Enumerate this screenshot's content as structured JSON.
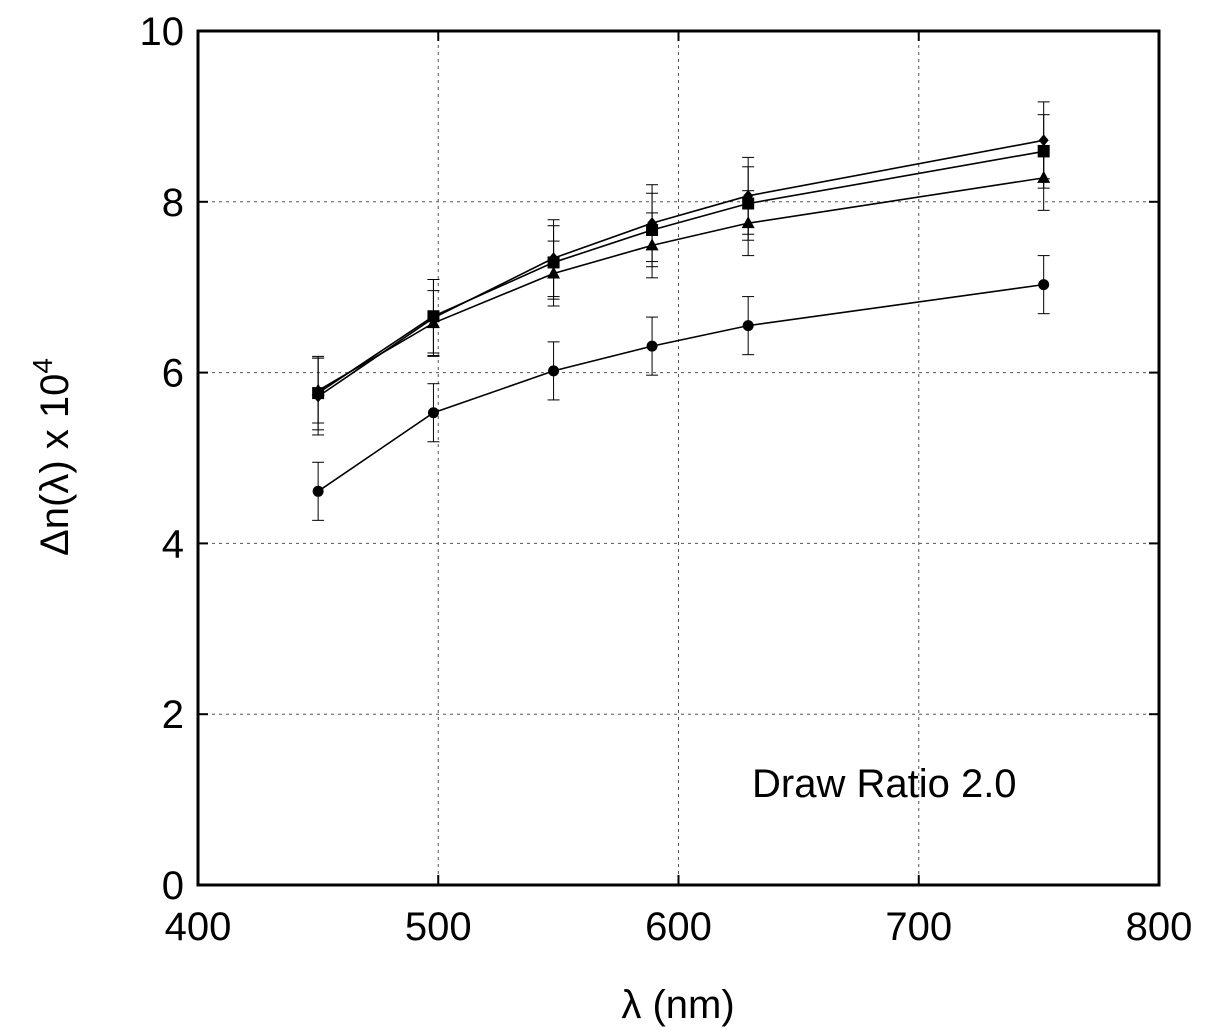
{
  "chart_data": {
    "type": "line",
    "xlabel": "λ (nm)",
    "ylabel": {
      "prefix": "Δn(λ) x 10",
      "exponent": "4"
    },
    "annotation": "Draw Ratio  2.0",
    "xlim": [
      400,
      800
    ],
    "ylim": [
      0,
      10
    ],
    "xticks": [
      "400",
      "500",
      "600",
      "700",
      "800"
    ],
    "yticks": [
      "0",
      "2",
      "4",
      "6",
      "8",
      "10"
    ],
    "grid": true,
    "x": [
      450,
      498,
      548,
      589,
      629,
      752
    ],
    "series": [
      {
        "marker": "diamond",
        "values": [
          5.72,
          6.64,
          7.34,
          7.75,
          8.07,
          8.72
        ],
        "errors": [
          0.45,
          0.45,
          0.45,
          0.45,
          0.45,
          0.45
        ]
      },
      {
        "marker": "square",
        "values": [
          5.76,
          6.66,
          7.29,
          7.67,
          7.98,
          8.59
        ],
        "errors": [
          0.43,
          0.43,
          0.43,
          0.43,
          0.43,
          0.43
        ]
      },
      {
        "marker": "triangle",
        "values": [
          5.79,
          6.58,
          7.16,
          7.49,
          7.75,
          8.28
        ],
        "errors": [
          0.38,
          0.38,
          0.38,
          0.38,
          0.38,
          0.38
        ]
      },
      {
        "marker": "circle",
        "values": [
          4.61,
          5.53,
          6.02,
          6.31,
          6.55,
          7.03
        ],
        "errors": [
          0.34,
          0.34,
          0.34,
          0.34,
          0.34,
          0.34
        ]
      }
    ]
  }
}
